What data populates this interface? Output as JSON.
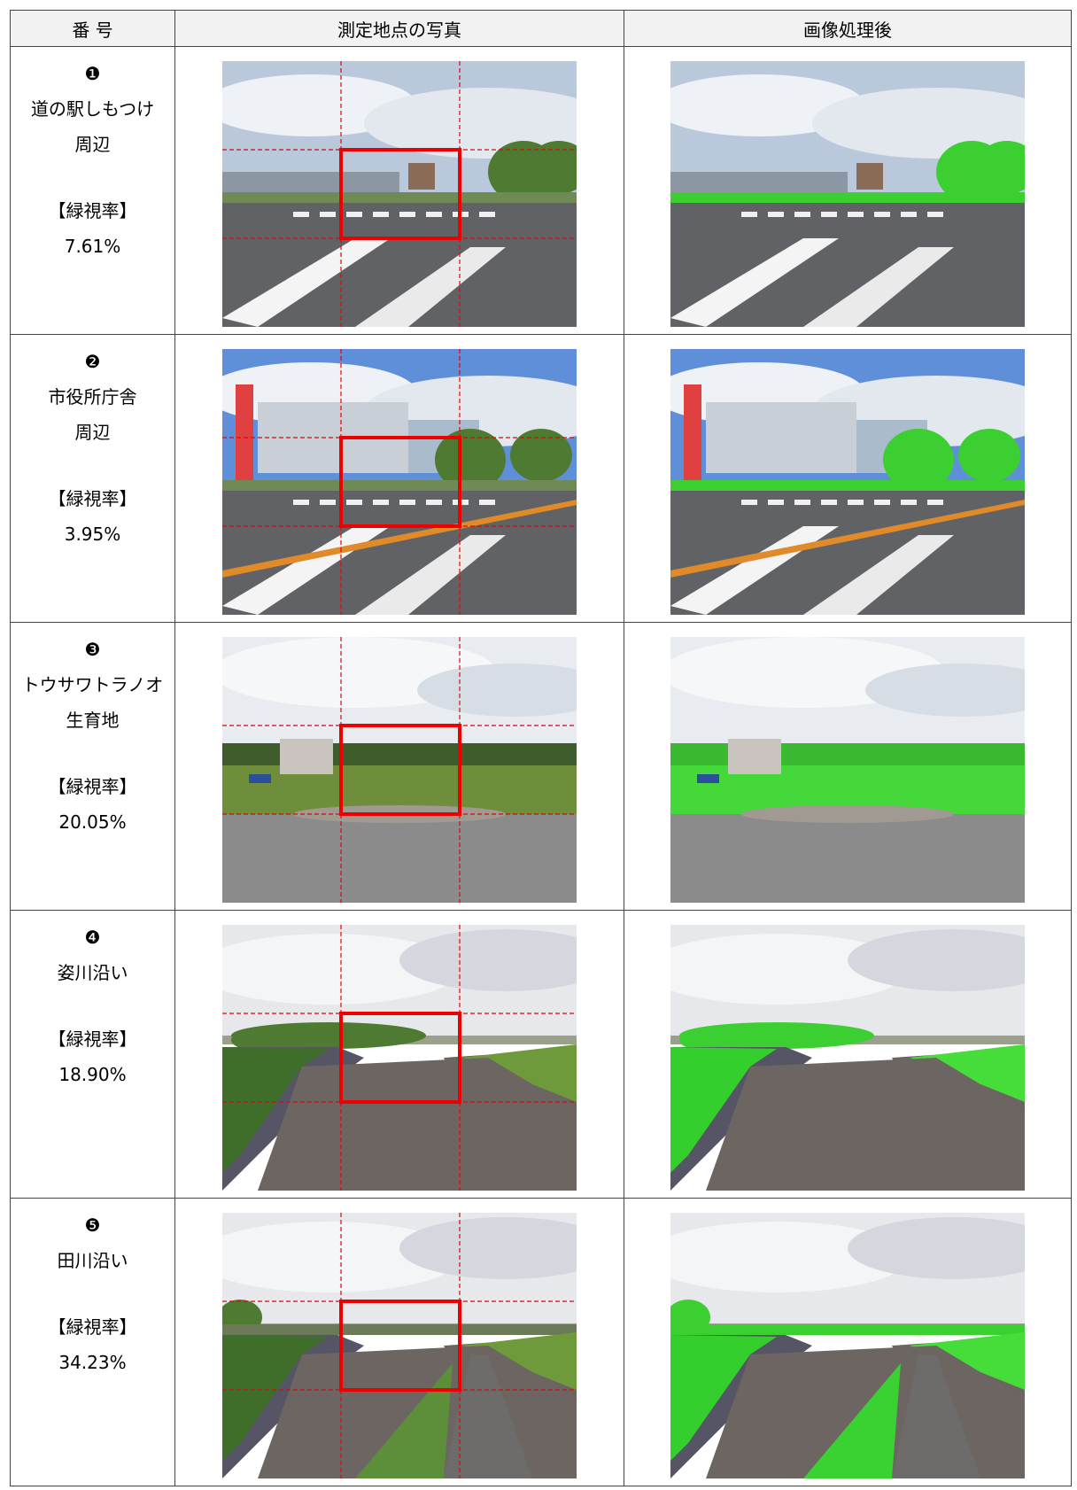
{
  "header": {
    "columns": [
      "番 号",
      "測定地点の写真",
      "画像処理後"
    ]
  },
  "rows": [
    {
      "marker": "❶",
      "name": [
        "道の駅しもつけ",
        "周辺"
      ],
      "label": "【緑視率】",
      "value": "7.61%"
    },
    {
      "marker": "❷",
      "name": [
        "市役所庁舎",
        "周辺"
      ],
      "label": "【緑視率】",
      "value": "3.95%"
    },
    {
      "marker": "❸",
      "name": [
        "トウサワトラノオ",
        "生育地"
      ],
      "label": "【緑視率】",
      "value": "20.05%"
    },
    {
      "marker": "❹",
      "name": [
        "姿川沿い"
      ],
      "label": "【緑視率】",
      "value": "18.90%"
    },
    {
      "marker": "❺",
      "name": [
        "田川沿い"
      ],
      "label": "【緑視率】",
      "value": "34.23%"
    }
  ]
}
